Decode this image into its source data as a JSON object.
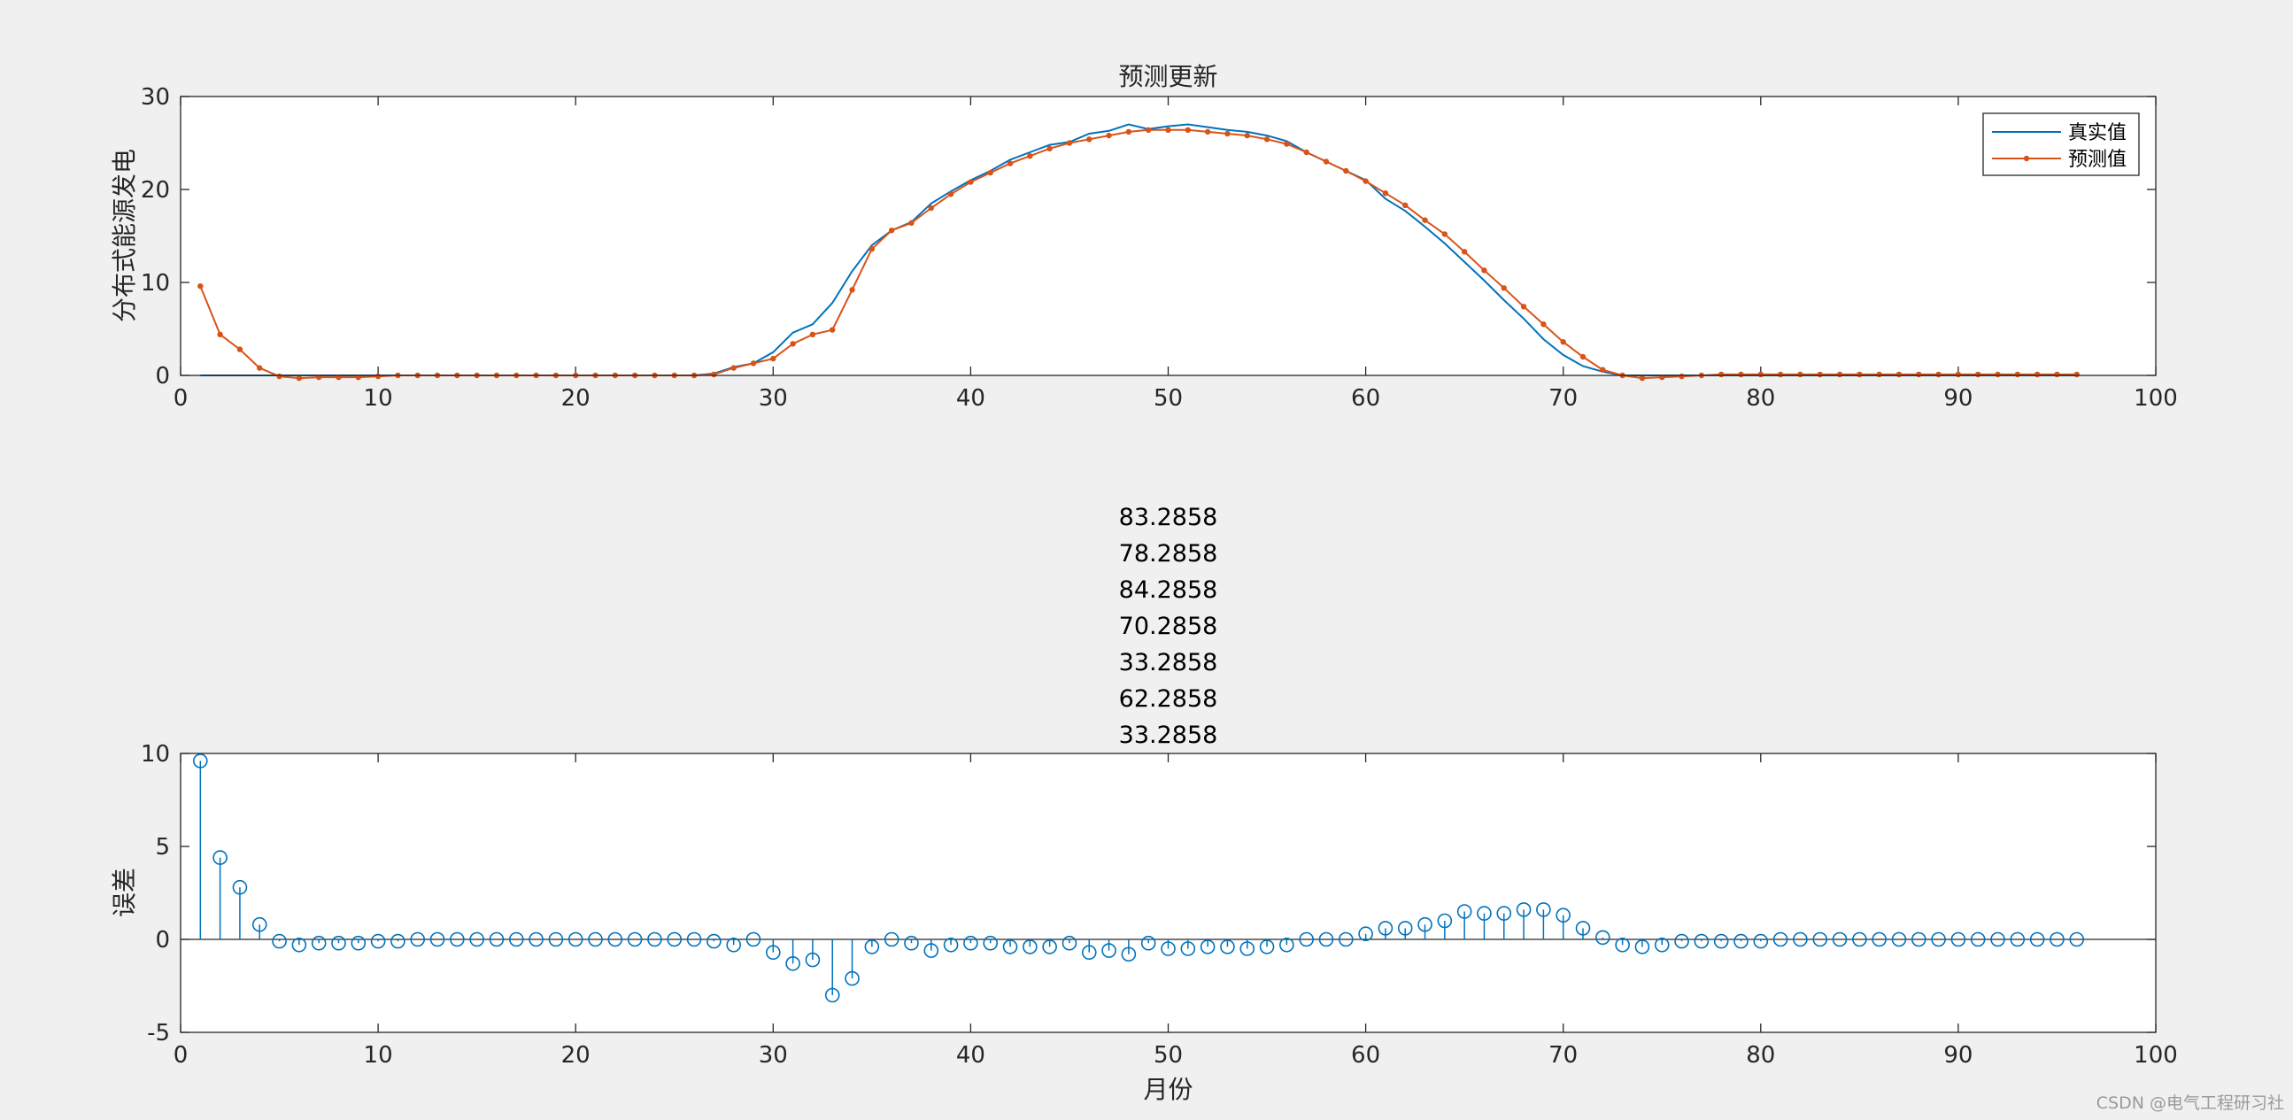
{
  "window": {
    "watermark": "CSDN @电气工程研习社"
  },
  "colors": {
    "actual": "#0072BD",
    "predicted": "#D95319",
    "stem": "#0072BD",
    "axes": "#262626",
    "background": "#f0f0f0"
  },
  "chart_data": [
    {
      "type": "line",
      "title": "预测更新",
      "xlabel": "",
      "ylabel": "分布式能源发电",
      "xlim": [
        0,
        100
      ],
      "ylim": [
        0,
        30
      ],
      "xticks": [
        0,
        10,
        20,
        30,
        40,
        50,
        60,
        70,
        80,
        90,
        100
      ],
      "yticks": [
        0,
        10,
        20,
        30
      ],
      "legend": {
        "position": "top-right",
        "entries": [
          "真实值",
          "预测值"
        ]
      },
      "x": [
        1,
        2,
        3,
        4,
        5,
        6,
        7,
        8,
        9,
        10,
        11,
        12,
        13,
        14,
        15,
        16,
        17,
        18,
        19,
        20,
        21,
        22,
        23,
        24,
        25,
        26,
        27,
        28,
        29,
        30,
        31,
        32,
        33,
        34,
        35,
        36,
        37,
        38,
        39,
        40,
        41,
        42,
        43,
        44,
        45,
        46,
        47,
        48,
        49,
        50,
        51,
        52,
        53,
        54,
        55,
        56,
        57,
        58,
        59,
        60,
        61,
        62,
        63,
        64,
        65,
        66,
        67,
        68,
        69,
        70,
        71,
        72,
        73,
        74,
        75,
        76,
        77,
        78,
        79,
        80,
        81,
        82,
        83,
        84,
        85,
        86,
        87,
        88,
        89,
        90,
        91,
        92,
        93,
        94,
        95,
        96
      ],
      "series": [
        {
          "name": "真实值",
          "marker": "none",
          "values": [
            0,
            0,
            0,
            0,
            0,
            0,
            0,
            0,
            0,
            0,
            0,
            0,
            0,
            0,
            0,
            0,
            0,
            0,
            0,
            0,
            0,
            0,
            0,
            0,
            0,
            0,
            0.2,
            0.9,
            1.3,
            2.5,
            4.6,
            5.5,
            7.8,
            11.2,
            14.0,
            15.6,
            16.5,
            18.5,
            19.8,
            21.0,
            22.0,
            23.2,
            24.0,
            24.8,
            25.1,
            26.0,
            26.3,
            27.0,
            26.5,
            26.8,
            27.0,
            26.7,
            26.4,
            26.2,
            25.8,
            25.2,
            24.0,
            23.0,
            22.0,
            21.0,
            19.0,
            17.7,
            16.0,
            14.2,
            12.2,
            10.2,
            8.1,
            6.1,
            3.9,
            2.2,
            1.0,
            0.4,
            0,
            0,
            0,
            0,
            0,
            0,
            0,
            0,
            0,
            0,
            0,
            0,
            0,
            0,
            0,
            0,
            0,
            0,
            0,
            0,
            0,
            0,
            0,
            0
          ]
        },
        {
          "name": "预测值",
          "marker": "dot",
          "values": [
            9.6,
            4.4,
            2.8,
            0.8,
            -0.1,
            -0.3,
            -0.2,
            -0.2,
            -0.2,
            -0.1,
            0,
            0,
            0,
            0,
            0,
            0,
            0,
            0,
            0,
            0,
            0,
            0,
            0,
            0,
            0,
            0,
            0.1,
            0.8,
            1.3,
            1.8,
            3.4,
            4.4,
            4.9,
            9.2,
            13.6,
            15.6,
            16.4,
            18.0,
            19.5,
            20.8,
            21.8,
            22.8,
            23.6,
            24.4,
            25.0,
            25.4,
            25.8,
            26.2,
            26.4,
            26.4,
            26.4,
            26.2,
            26.0,
            25.8,
            25.4,
            24.9,
            24.0,
            23.0,
            22.0,
            20.9,
            19.6,
            18.3,
            16.7,
            15.2,
            13.3,
            11.3,
            9.4,
            7.4,
            5.5,
            3.6,
            2.0,
            0.6,
            0,
            -0.3,
            -0.2,
            -0.1,
            0,
            0.1,
            0.1,
            0.1,
            0.1,
            0.1,
            0.1,
            0.1,
            0.1,
            0.1,
            0.1,
            0.1,
            0.1,
            0.1,
            0.1,
            0.1,
            0.1,
            0.1,
            0.1,
            0.1
          ]
        }
      ]
    },
    {
      "type": "stem",
      "title_lines": [
        "83.2858",
        "78.2858",
        "84.2858",
        "70.2858",
        "33.2858",
        "62.2858",
        "33.2858"
      ],
      "xlabel": "月份",
      "ylabel": "误差",
      "xlim": [
        0,
        100
      ],
      "ylim": [
        -5,
        10
      ],
      "xticks": [
        0,
        10,
        20,
        30,
        40,
        50,
        60,
        70,
        80,
        90,
        100
      ],
      "yticks": [
        -5,
        0,
        5,
        10
      ],
      "x": [
        1,
        2,
        3,
        4,
        5,
        6,
        7,
        8,
        9,
        10,
        11,
        12,
        13,
        14,
        15,
        16,
        17,
        18,
        19,
        20,
        21,
        22,
        23,
        24,
        25,
        26,
        27,
        28,
        29,
        30,
        31,
        32,
        33,
        34,
        35,
        36,
        37,
        38,
        39,
        40,
        41,
        42,
        43,
        44,
        45,
        46,
        47,
        48,
        49,
        50,
        51,
        52,
        53,
        54,
        55,
        56,
        57,
        58,
        59,
        60,
        61,
        62,
        63,
        64,
        65,
        66,
        67,
        68,
        69,
        70,
        71,
        72,
        73,
        74,
        75,
        76,
        77,
        78,
        79,
        80,
        81,
        82,
        83,
        84,
        85,
        86,
        87,
        88,
        89,
        90,
        91,
        92,
        93,
        94,
        95,
        96
      ],
      "values": [
        9.6,
        4.4,
        2.8,
        0.8,
        -0.1,
        -0.3,
        -0.2,
        -0.2,
        -0.2,
        -0.1,
        -0.1,
        0,
        0,
        0,
        0,
        0,
        0,
        0,
        0,
        0,
        0,
        0,
        0,
        0,
        0,
        0,
        -0.1,
        -0.3,
        0,
        -0.7,
        -1.3,
        -1.1,
        -3.0,
        -2.1,
        -0.4,
        0,
        -0.2,
        -0.6,
        -0.3,
        -0.2,
        -0.2,
        -0.4,
        -0.4,
        -0.4,
        -0.2,
        -0.7,
        -0.6,
        -0.8,
        -0.2,
        -0.5,
        -0.5,
        -0.4,
        -0.4,
        -0.5,
        -0.4,
        -0.3,
        0,
        0,
        0,
        0.3,
        0.6,
        0.6,
        0.8,
        1.0,
        1.5,
        1.4,
        1.4,
        1.6,
        1.6,
        1.3,
        0.6,
        0.1,
        -0.3,
        -0.4,
        -0.3,
        -0.1,
        -0.1,
        -0.1,
        -0.1,
        -0.1,
        0,
        0,
        0,
        0,
        0,
        0,
        0,
        0,
        0,
        0,
        0,
        0,
        0,
        0,
        0,
        0
      ]
    }
  ]
}
